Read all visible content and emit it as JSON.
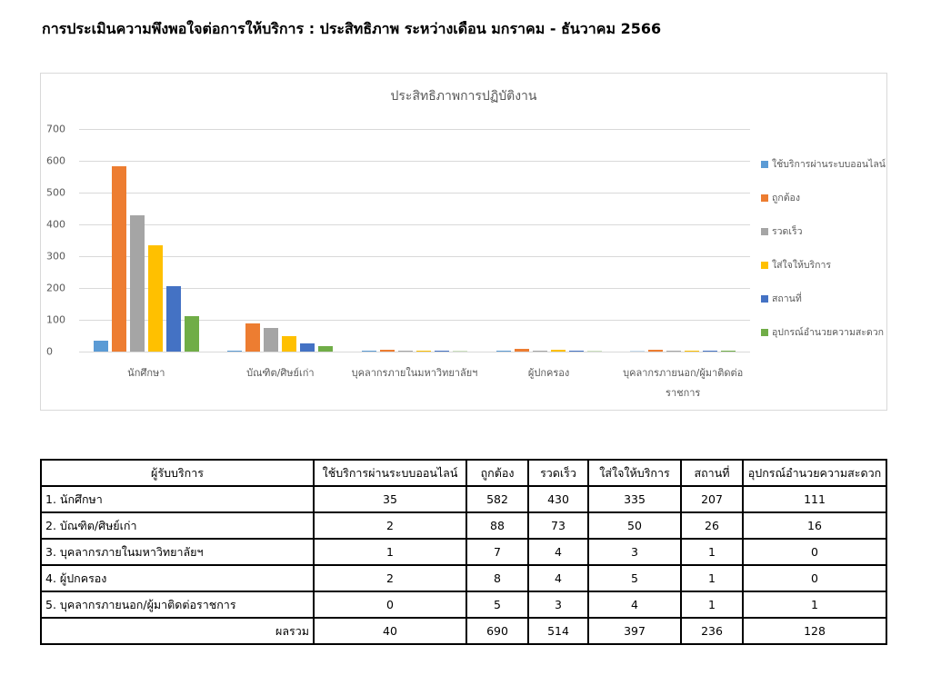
{
  "page": {
    "title": "การประเมินความพึงพอใจต่อการให้บริการ : ประสิทธิภาพ ระหว่างเดือน มกราคม - ธันวาคม 2566"
  },
  "chart_data": {
    "type": "bar",
    "title": "ประสิทธิภาพการปฏิบัติงาน",
    "xlabel": "",
    "ylabel": "",
    "ylim": [
      0,
      700
    ],
    "yticks": [
      0,
      100,
      200,
      300,
      400,
      500,
      600,
      700
    ],
    "grid": true,
    "legend_position": "right",
    "categories": [
      "นักศึกษา",
      "บัณฑิต/ศิษย์เก่า",
      "บุคลากรภายในมหาวิทยาลัยฯ",
      "ผู้ปกครอง",
      "บุคลากรภายนอก/ผู้มาติดต่อราชการ"
    ],
    "series": [
      {
        "name": "ใช้บริการผ่านระบบออนไลน์",
        "color": "#5b9bd5",
        "values": [
          35,
          2,
          1,
          2,
          0
        ]
      },
      {
        "name": "ถูกต้อง",
        "color": "#ed7d31",
        "values": [
          582,
          88,
          7,
          8,
          5
        ]
      },
      {
        "name": "รวดเร็ว",
        "color": "#a5a5a5",
        "values": [
          430,
          73,
          4,
          4,
          3
        ]
      },
      {
        "name": "ใส่ใจให้บริการ",
        "color": "#ffc000",
        "values": [
          335,
          50,
          3,
          5,
          4
        ]
      },
      {
        "name": "สถานที่",
        "color": "#4472c4",
        "values": [
          207,
          26,
          1,
          1,
          1
        ]
      },
      {
        "name": "อุปกรณ์อำนวยความสะดวก",
        "color": "#70ad47",
        "values": [
          111,
          16,
          0,
          0,
          1
        ]
      }
    ]
  },
  "chart": {
    "category_labels": [
      [
        "นักศึกษา"
      ],
      [
        "บัณฑิต/ศิษย์เก่า"
      ],
      [
        "บุคลากรภายในมหาวิทยาลัยฯ"
      ],
      [
        "ผู้ปกครอง"
      ],
      [
        "บุคลากรภายนอก/ผู้มาติดต่อ",
        "ราชการ"
      ]
    ]
  },
  "table": {
    "headers": [
      "ผู้รับบริการ",
      "ใช้บริการผ่านระบบออนไลน์",
      "ถูกต้อง",
      "รวดเร็ว",
      "ใส่ใจให้บริการ",
      "สถานที่",
      "อุปกรณ์อำนวยความสะดวก"
    ],
    "rows": [
      [
        "1. นักศึกษา",
        "35",
        "582",
        "430",
        "335",
        "207",
        "111"
      ],
      [
        "2. บัณฑิต/ศิษย์เก่า",
        "2",
        "88",
        "73",
        "50",
        "26",
        "16"
      ],
      [
        "3. บุคลากรภายในมหาวิทยาลัยฯ",
        "1",
        "7",
        "4",
        "3",
        "1",
        "0"
      ],
      [
        "4. ผู้ปกครอง",
        "2",
        "8",
        "4",
        "5",
        "1",
        "0"
      ],
      [
        "5. บุคลากรภายนอก/ผู้มาติดต่อราชการ",
        "0",
        "5",
        "3",
        "4",
        "1",
        "1"
      ]
    ],
    "total_row": [
      "ผลรวม",
      "40",
      "690",
      "514",
      "397",
      "236",
      "128"
    ]
  }
}
